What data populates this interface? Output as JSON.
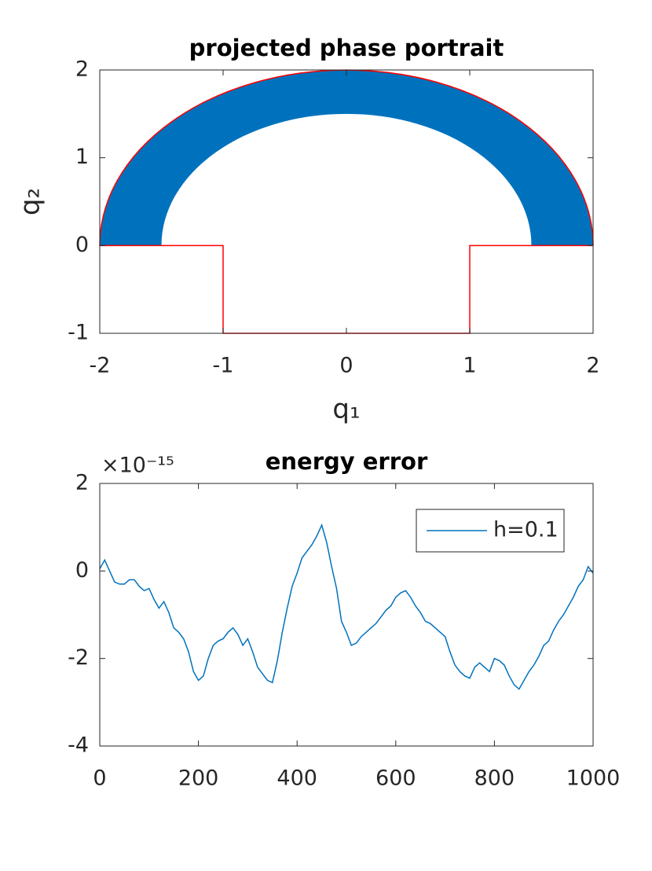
{
  "chart_data": [
    {
      "type": "region",
      "title": "projected phase portrait",
      "xlabel": "q₁",
      "ylabel": "q₂",
      "xlim": [
        -2,
        2
      ],
      "ylim": [
        -1,
        2
      ],
      "xticks": [
        -2,
        -1,
        0,
        1,
        2
      ],
      "yticks": [
        -1,
        0,
        1,
        2
      ],
      "grid": false,
      "region": {
        "color": "#0072bd",
        "inner_radius": 1.5,
        "outer_radius": 2
      },
      "boundary": {
        "color": "#ff0000",
        "arc_radius": 2,
        "x": [
          -2,
          -1,
          -1,
          1,
          1,
          2
        ],
        "y": [
          0,
          0,
          -1,
          -1,
          0,
          0
        ]
      }
    },
    {
      "type": "line",
      "title": "energy error",
      "exponent_label": "×10⁻¹⁵",
      "xlim": [
        0,
        1000
      ],
      "ylim": [
        -4,
        2
      ],
      "xticks": [
        0,
        200,
        400,
        600,
        800,
        1000
      ],
      "yticks": [
        -4,
        -2,
        0,
        2
      ],
      "grid": false,
      "legend": "northeast",
      "x": [
        0,
        10,
        20,
        30,
        40,
        50,
        60,
        70,
        80,
        90,
        100,
        110,
        120,
        130,
        140,
        150,
        160,
        170,
        180,
        190,
        200,
        210,
        220,
        230,
        240,
        250,
        260,
        270,
        280,
        290,
        300,
        310,
        320,
        330,
        340,
        350,
        360,
        370,
        380,
        390,
        400,
        410,
        420,
        430,
        440,
        450,
        460,
        470,
        480,
        490,
        500,
        510,
        520,
        530,
        540,
        550,
        560,
        570,
        580,
        590,
        600,
        610,
        620,
        630,
        640,
        650,
        660,
        670,
        680,
        690,
        700,
        710,
        720,
        730,
        740,
        750,
        760,
        770,
        780,
        790,
        800,
        810,
        820,
        830,
        840,
        850,
        860,
        870,
        880,
        890,
        900,
        910,
        920,
        930,
        940,
        950,
        960,
        970,
        980,
        990,
        1000
      ],
      "series": [
        {
          "name": "h=0.1",
          "color": "#0072bd",
          "values": [
            0.05,
            0.25,
            0,
            -0.25,
            -0.3,
            -0.3,
            -0.2,
            -0.2,
            -0.35,
            -0.45,
            -0.4,
            -0.65,
            -0.85,
            -0.7,
            -0.95,
            -1.3,
            -1.4,
            -1.55,
            -1.85,
            -2.3,
            -2.5,
            -2.4,
            -2.0,
            -1.7,
            -1.6,
            -1.55,
            -1.4,
            -1.3,
            -1.45,
            -1.7,
            -1.55,
            -1.85,
            -2.2,
            -2.35,
            -2.5,
            -2.55,
            -2.05,
            -1.4,
            -0.85,
            -0.35,
            -0.05,
            0.3,
            0.45,
            0.6,
            0.8,
            1.05,
            0.65,
            0.1,
            -0.4,
            -1.15,
            -1.4,
            -1.7,
            -1.65,
            -1.5,
            -1.4,
            -1.3,
            -1.2,
            -1.05,
            -0.9,
            -0.8,
            -0.6,
            -0.5,
            -0.45,
            -0.6,
            -0.8,
            -0.95,
            -1.15,
            -1.2,
            -1.3,
            -1.4,
            -1.5,
            -1.85,
            -2.15,
            -2.3,
            -2.4,
            -2.45,
            -2.2,
            -2.1,
            -2.2,
            -2.3,
            -2.0,
            -2.05,
            -2.15,
            -2.4,
            -2.6,
            -2.7,
            -2.5,
            -2.3,
            -2.15,
            -1.95,
            -1.7,
            -1.6,
            -1.35,
            -1.15,
            -1.0,
            -0.8,
            -0.6,
            -0.35,
            -0.2,
            0.1,
            -0.05
          ]
        }
      ]
    }
  ]
}
